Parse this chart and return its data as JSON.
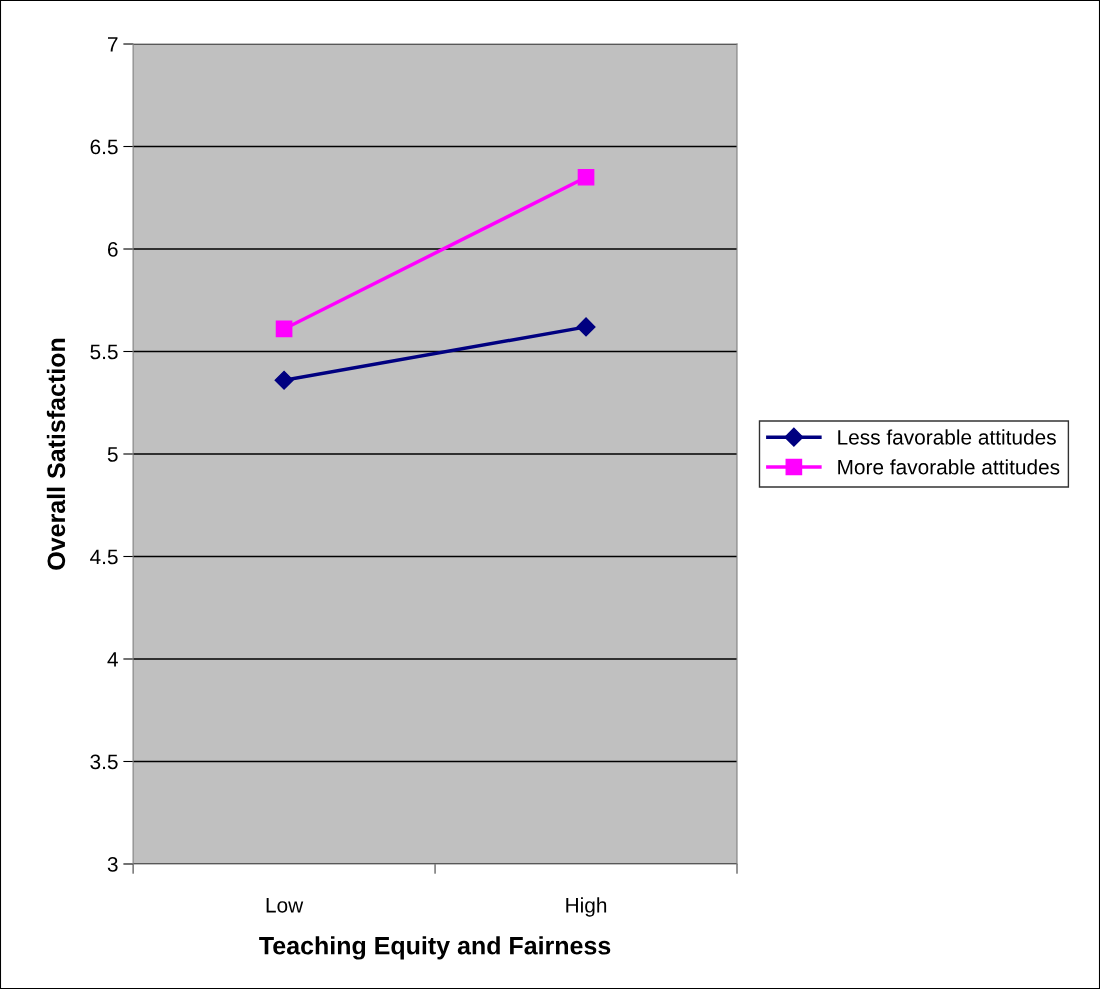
{
  "chart_data": {
    "type": "line",
    "xlabel": "Teaching Equity and Fairness",
    "ylabel": "Overall Satisfaction",
    "categories": [
      "Low",
      "High"
    ],
    "series": [
      {
        "name": "Less favorable attitudes",
        "color": "#000080",
        "marker": "diamond",
        "values": [
          5.36,
          5.62
        ]
      },
      {
        "name": "More favorable attitudes",
        "color": "#ff00ff",
        "marker": "square",
        "values": [
          5.61,
          6.35
        ]
      }
    ],
    "ylim": [
      3,
      7
    ],
    "yticks": [
      3,
      3.5,
      4,
      4.5,
      5,
      5.5,
      6,
      6.5,
      7
    ],
    "grid": "y",
    "legend": "right"
  }
}
